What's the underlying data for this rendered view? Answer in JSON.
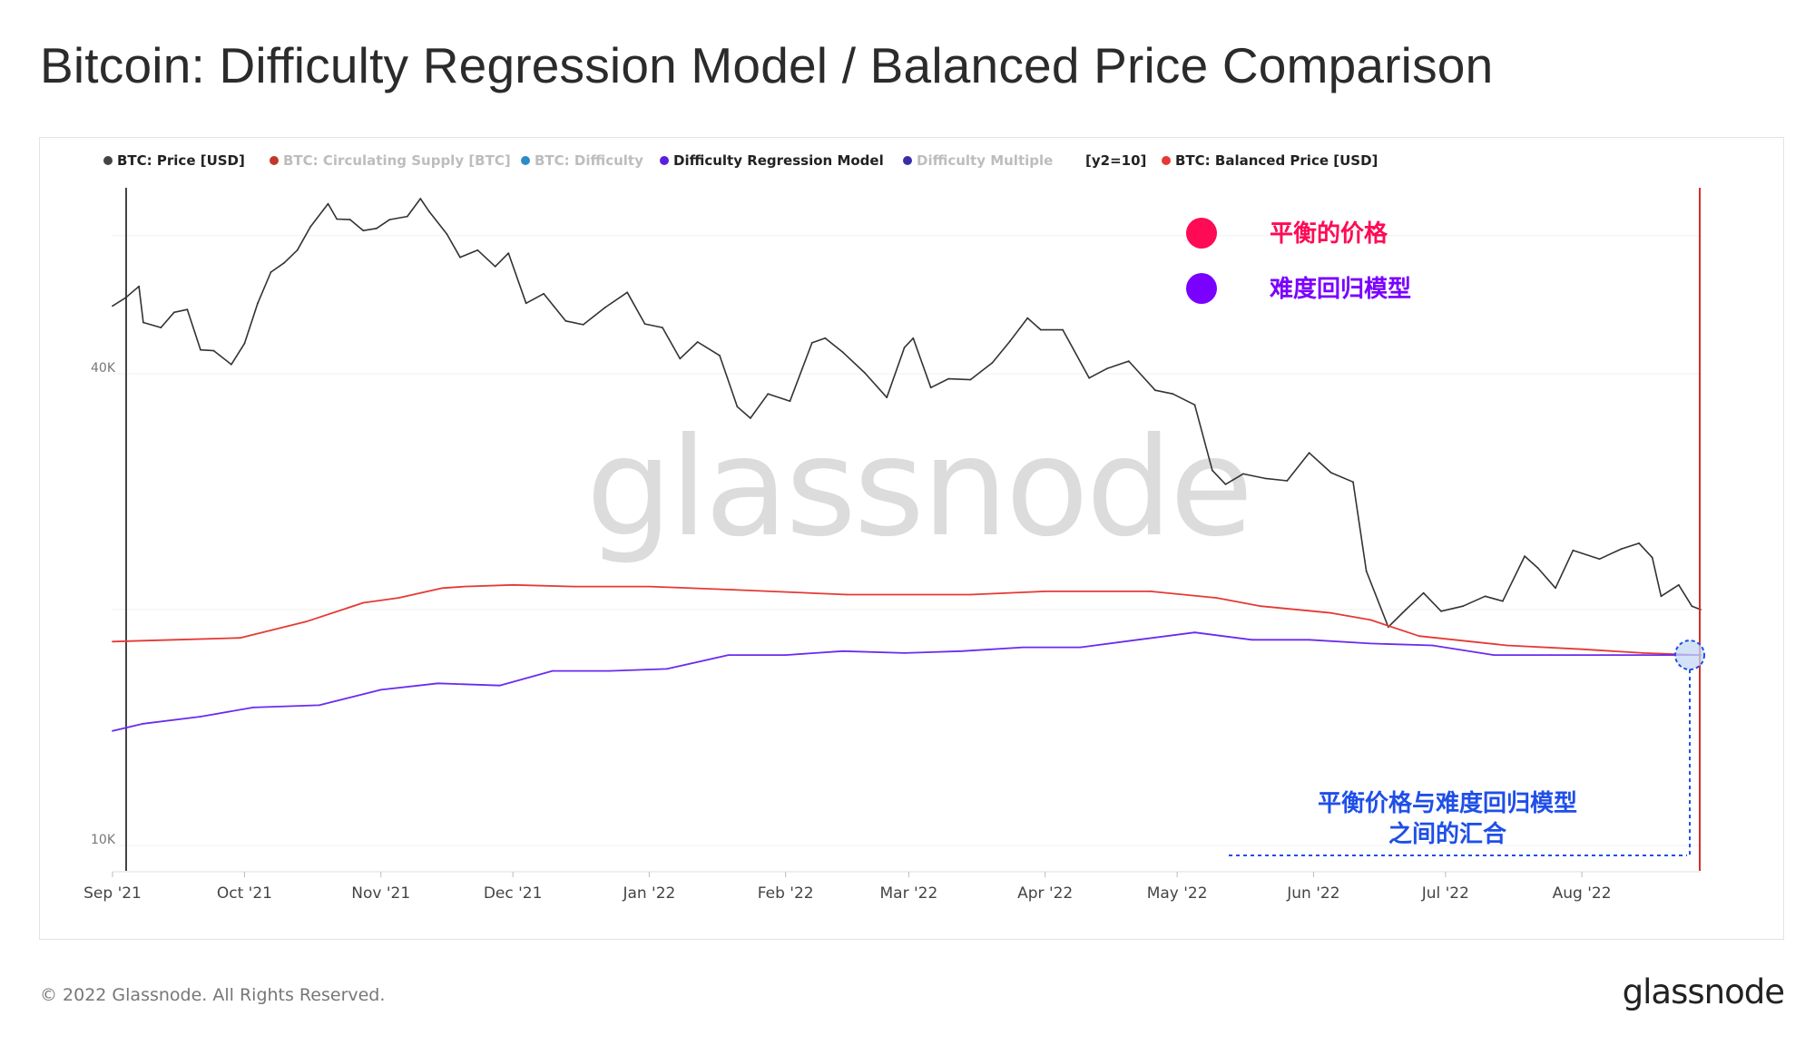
{
  "title": "Bitcoin: Difficulty Regression Model / Balanced Price Comparison",
  "copyright": "© 2022 Glassnode. All Rights Reserved.",
  "logo_text": "glassnode",
  "watermark_text": "glassnode",
  "legend": [
    {
      "label": "BTC: Price [USD]",
      "color": "#444444",
      "text_color": "#222222"
    },
    {
      "label": "BTC: Circulating Supply [BTC]",
      "color": "#c0392b",
      "text_color": "#bdbdbd"
    },
    {
      "label": "BTC: Difficulty",
      "color": "#2e8bc9",
      "text_color": "#bdbdbd"
    },
    {
      "label": "Difficulty Regression Model",
      "color": "#5b1ee0",
      "text_color": "#222222"
    },
    {
      "label": "Difficulty Multiple",
      "color": "#3a2ea8",
      "text_color": "#bdbdbd"
    },
    {
      "label": "[y2=10]",
      "color": "",
      "text_color": "#222222"
    },
    {
      "label": "BTC: Balanced Price [USD]",
      "color": "#e53935",
      "text_color": "#222222"
    }
  ],
  "annotations": {
    "balanced_price_label": "平衡的价格",
    "balanced_price_color": "#ff0a54",
    "difficulty_model_label": "难度回归模型",
    "difficulty_model_color": "#7a00ff",
    "convergence_line1": "平衡价格与难度回归模型",
    "convergence_line2": "之间的汇合",
    "convergence_color": "#1f4fe8"
  },
  "chart_data": {
    "type": "line",
    "title": "Bitcoin: Difficulty Regression Model / Balanced Price Comparison",
    "xlabel": "",
    "ylabel": "",
    "y_scale": "log",
    "ylim": [
      10000,
      70000
    ],
    "y_ticks": [
      {
        "value": 10000,
        "label": "10K"
      },
      {
        "value": 40000,
        "label": "40K"
      }
    ],
    "x_range": [
      "2021-09-01",
      "2022-08-28"
    ],
    "x_ticks": [
      {
        "date": "2021-09-01",
        "label": "Sep '21"
      },
      {
        "date": "2021-10-01",
        "label": "Oct '21"
      },
      {
        "date": "2021-11-01",
        "label": "Nov '21"
      },
      {
        "date": "2021-12-01",
        "label": "Dec '21"
      },
      {
        "date": "2022-01-01",
        "label": "Jan '22"
      },
      {
        "date": "2022-02-01",
        "label": "Feb '22"
      },
      {
        "date": "2022-03-01",
        "label": "Mar '22"
      },
      {
        "date": "2022-04-01",
        "label": "Apr '22"
      },
      {
        "date": "2022-05-01",
        "label": "May '22"
      },
      {
        "date": "2022-06-01",
        "label": "Jun '22"
      },
      {
        "date": "2022-07-01",
        "label": "Jul '22"
      },
      {
        "date": "2022-08-01",
        "label": "Aug '22"
      }
    ],
    "series": [
      {
        "name": "BTC: Price [USD]",
        "color": "#333333",
        "points": [
          [
            "2021-09-01",
            48800
          ],
          [
            "2021-09-04",
            50000
          ],
          [
            "2021-09-07",
            51700
          ],
          [
            "2021-09-08",
            46500
          ],
          [
            "2021-09-12",
            45800
          ],
          [
            "2021-09-15",
            47900
          ],
          [
            "2021-09-18",
            48300
          ],
          [
            "2021-09-21",
            42900
          ],
          [
            "2021-09-24",
            42800
          ],
          [
            "2021-09-28",
            41100
          ],
          [
            "2021-10-01",
            43700
          ],
          [
            "2021-10-04",
            49200
          ],
          [
            "2021-10-07",
            53900
          ],
          [
            "2021-10-10",
            55400
          ],
          [
            "2021-10-13",
            57500
          ],
          [
            "2021-10-16",
            61600
          ],
          [
            "2021-10-20",
            65900
          ],
          [
            "2021-10-22",
            63000
          ],
          [
            "2021-10-25",
            62900
          ],
          [
            "2021-10-28",
            60900
          ],
          [
            "2021-10-31",
            61300
          ],
          [
            "2021-11-03",
            62900
          ],
          [
            "2021-11-07",
            63500
          ],
          [
            "2021-11-10",
            66900
          ],
          [
            "2021-11-12",
            64400
          ],
          [
            "2021-11-16",
            60300
          ],
          [
            "2021-11-19",
            56300
          ],
          [
            "2021-11-23",
            57500
          ],
          [
            "2021-11-27",
            54800
          ],
          [
            "2021-11-30",
            57000
          ],
          [
            "2021-12-04",
            49200
          ],
          [
            "2021-12-08",
            50600
          ],
          [
            "2021-12-13",
            46700
          ],
          [
            "2021-12-17",
            46200
          ],
          [
            "2021-12-22",
            48600
          ],
          [
            "2021-12-27",
            50800
          ],
          [
            "2021-12-31",
            46300
          ],
          [
            "2022-01-04",
            45800
          ],
          [
            "2022-01-08",
            41800
          ],
          [
            "2022-01-12",
            43900
          ],
          [
            "2022-01-17",
            42200
          ],
          [
            "2022-01-21",
            36300
          ],
          [
            "2022-01-24",
            35100
          ],
          [
            "2022-01-28",
            37700
          ],
          [
            "2022-02-02",
            36900
          ],
          [
            "2022-02-07",
            43800
          ],
          [
            "2022-02-10",
            44400
          ],
          [
            "2022-02-14",
            42600
          ],
          [
            "2022-02-19",
            40100
          ],
          [
            "2022-02-24",
            37300
          ],
          [
            "2022-02-28",
            43200
          ],
          [
            "2022-03-02",
            44400
          ],
          [
            "2022-03-06",
            38400
          ],
          [
            "2022-03-10",
            39400
          ],
          [
            "2022-03-15",
            39300
          ],
          [
            "2022-03-20",
            41300
          ],
          [
            "2022-03-24",
            44000
          ],
          [
            "2022-03-28",
            47100
          ],
          [
            "2022-03-31",
            45500
          ],
          [
            "2022-04-05",
            45500
          ],
          [
            "2022-04-11",
            39500
          ],
          [
            "2022-04-15",
            40600
          ],
          [
            "2022-04-20",
            41500
          ],
          [
            "2022-04-26",
            38100
          ],
          [
            "2022-04-30",
            37700
          ],
          [
            "2022-05-05",
            36500
          ],
          [
            "2022-05-09",
            30100
          ],
          [
            "2022-05-12",
            28900
          ],
          [
            "2022-05-16",
            29800
          ],
          [
            "2022-05-21",
            29400
          ],
          [
            "2022-05-26",
            29200
          ],
          [
            "2022-05-31",
            31700
          ],
          [
            "2022-06-05",
            29900
          ],
          [
            "2022-06-10",
            29100
          ],
          [
            "2022-06-13",
            22400
          ],
          [
            "2022-06-18",
            19000
          ],
          [
            "2022-06-22",
            20000
          ],
          [
            "2022-06-26",
            21000
          ],
          [
            "2022-06-30",
            19900
          ],
          [
            "2022-07-05",
            20200
          ],
          [
            "2022-07-10",
            20800
          ],
          [
            "2022-07-14",
            20500
          ],
          [
            "2022-07-19",
            23400
          ],
          [
            "2022-07-22",
            22600
          ],
          [
            "2022-07-26",
            21300
          ],
          [
            "2022-07-30",
            23800
          ],
          [
            "2022-08-05",
            23200
          ],
          [
            "2022-08-10",
            23900
          ],
          [
            "2022-08-14",
            24300
          ],
          [
            "2022-08-17",
            23300
          ],
          [
            "2022-08-19",
            20800
          ],
          [
            "2022-08-23",
            21500
          ],
          [
            "2022-08-26",
            20200
          ],
          [
            "2022-08-28",
            20000
          ]
        ]
      },
      {
        "name": "BTC: Balanced Price [USD]",
        "color": "#e53935",
        "points": [
          [
            "2021-09-01",
            18200
          ],
          [
            "2021-09-15",
            18300
          ],
          [
            "2021-09-30",
            18400
          ],
          [
            "2021-10-15",
            19300
          ],
          [
            "2021-10-28",
            20400
          ],
          [
            "2021-11-05",
            20700
          ],
          [
            "2021-11-15",
            21300
          ],
          [
            "2021-11-20",
            21400
          ],
          [
            "2021-12-01",
            21500
          ],
          [
            "2021-12-15",
            21400
          ],
          [
            "2022-01-01",
            21400
          ],
          [
            "2022-01-20",
            21200
          ],
          [
            "2022-02-15",
            20900
          ],
          [
            "2022-03-15",
            20900
          ],
          [
            "2022-04-01",
            21100
          ],
          [
            "2022-04-25",
            21100
          ],
          [
            "2022-05-10",
            20700
          ],
          [
            "2022-05-20",
            20200
          ],
          [
            "2022-06-05",
            19800
          ],
          [
            "2022-06-14",
            19400
          ],
          [
            "2022-06-25",
            18500
          ],
          [
            "2022-07-15",
            18000
          ],
          [
            "2022-08-01",
            17800
          ],
          [
            "2022-08-15",
            17600
          ],
          [
            "2022-08-28",
            17500
          ]
        ]
      },
      {
        "name": "Difficulty Regression Model",
        "color": "#6a2bf0",
        "points": [
          [
            "2021-09-01",
            14000
          ],
          [
            "2021-09-08",
            14300
          ],
          [
            "2021-09-21",
            14600
          ],
          [
            "2021-10-03",
            15000
          ],
          [
            "2021-10-18",
            15100
          ],
          [
            "2021-11-01",
            15800
          ],
          [
            "2021-11-14",
            16100
          ],
          [
            "2021-11-28",
            16000
          ],
          [
            "2021-12-10",
            16700
          ],
          [
            "2021-12-23",
            16700
          ],
          [
            "2022-01-05",
            16800
          ],
          [
            "2022-01-19",
            17500
          ],
          [
            "2022-02-01",
            17500
          ],
          [
            "2022-02-14",
            17700
          ],
          [
            "2022-02-28",
            17600
          ],
          [
            "2022-03-13",
            17700
          ],
          [
            "2022-03-27",
            17900
          ],
          [
            "2022-04-09",
            17900
          ],
          [
            "2022-04-22",
            18300
          ],
          [
            "2022-05-05",
            18700
          ],
          [
            "2022-05-18",
            18300
          ],
          [
            "2022-05-31",
            18300
          ],
          [
            "2022-06-14",
            18100
          ],
          [
            "2022-06-28",
            18000
          ],
          [
            "2022-07-12",
            17500
          ],
          [
            "2022-07-25",
            17500
          ],
          [
            "2022-08-08",
            17500
          ],
          [
            "2022-08-28",
            17500
          ]
        ]
      }
    ],
    "legend_position": "top-left",
    "grid": "horizontal"
  }
}
